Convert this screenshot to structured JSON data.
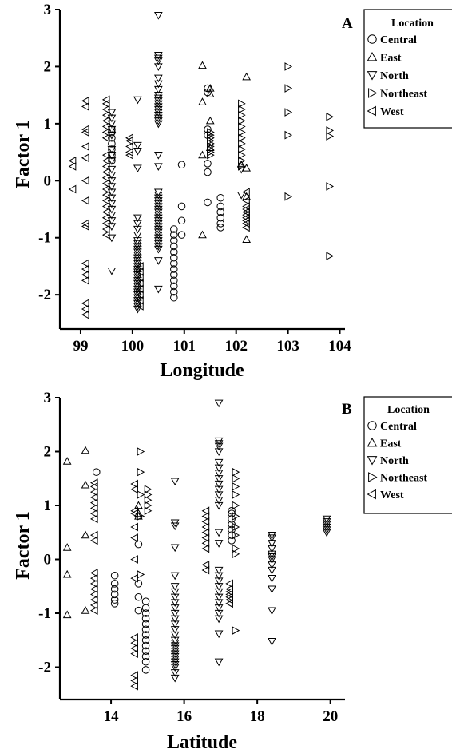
{
  "chart_data": [
    {
      "type": "scatter",
      "panel": "A",
      "xlabel": "Longitude",
      "ylabel": "Factor 1",
      "xlim": [
        98.6,
        104.1
      ],
      "ylim": [
        -2.6,
        3.0
      ],
      "xticks": [
        99,
        100,
        101,
        102,
        103,
        104
      ],
      "yticks": [
        -2,
        -1,
        0,
        1,
        2,
        3
      ],
      "legend": {
        "title": "Location",
        "placement": "right",
        "entries": [
          "Central",
          "East",
          "North",
          "Northeast",
          "West"
        ]
      },
      "series": [
        {
          "name": "Central",
          "marker": "circle",
          "clusters": [
            {
              "x": 99.6,
              "y": [
                0.35,
                0.45,
                0.55,
                0.65,
                0.75,
                0.85,
                0.9
              ]
            },
            {
              "x": 100.8,
              "y": [
                -2.05,
                -1.95,
                -1.85,
                -1.75,
                -1.65,
                -1.55,
                -1.45,
                -1.35,
                -1.25,
                -1.15,
                -1.05,
                -0.95,
                -0.85
              ]
            },
            {
              "x": 100.95,
              "y": [
                0.28,
                -0.45,
                -0.7,
                -0.95
              ]
            },
            {
              "x": 101.45,
              "y": [
                1.62,
                1.55,
                0.9,
                0.8,
                0.3,
                0.15,
                -0.38
              ]
            },
            {
              "x": 101.7,
              "y": [
                -0.3,
                -0.45,
                -0.55,
                -0.65,
                -0.75,
                -0.82
              ]
            }
          ]
        },
        {
          "name": "East",
          "marker": "triangle-up",
          "clusters": [
            {
              "x": 101.35,
              "y": [
                2.02,
                1.38,
                0.45,
                -0.95
              ]
            },
            {
              "x": 101.5,
              "y": [
                1.62,
                1.52,
                1.05,
                0.58
              ]
            },
            {
              "x": 102.1,
              "y": [
                0.28
              ]
            },
            {
              "x": 102.2,
              "y": [
                1.82,
                0.22,
                -0.28,
                -1.03
              ]
            }
          ]
        },
        {
          "name": "North",
          "marker": "triangle-down",
          "clusters": [
            {
              "x": 99.6,
              "y": [
                1.2,
                1.1,
                1.0,
                0.9,
                0.8,
                0.55,
                0.45,
                0.35,
                0.2,
                0.1,
                0.0,
                -0.1,
                -0.2,
                -0.3,
                -0.4,
                -0.5,
                -0.6,
                -0.7,
                -0.8,
                -1.0,
                -1.58
              ]
            },
            {
              "x": 100.1,
              "y": [
                1.42,
                0.62,
                0.52,
                0.22,
                -0.65,
                -0.75,
                -0.85,
                -0.95,
                -1.05,
                -1.1,
                -1.15,
                -1.2,
                -1.25,
                -1.3,
                -1.35,
                -1.4,
                -1.45,
                -1.5,
                -1.55,
                -1.6,
                -1.65,
                -1.7,
                -1.75,
                -1.8,
                -1.85,
                -1.9,
                -1.95,
                -2.0,
                -2.05,
                -2.1,
                -2.15,
                -2.2,
                -2.25
              ]
            },
            {
              "x": 100.5,
              "y": [
                2.9,
                2.2,
                2.15,
                2.1,
                2.0,
                1.8,
                1.7,
                1.6,
                1.5,
                1.45,
                1.4,
                1.35,
                1.3,
                1.25,
                1.2,
                1.15,
                1.1,
                1.05,
                1.0,
                0.45,
                0.25,
                -0.2,
                -0.25,
                -0.3,
                -0.35,
                -0.4,
                -0.45,
                -0.5,
                -0.55,
                -0.6,
                -0.65,
                -0.7,
                -0.75,
                -0.8,
                -0.85,
                -0.9,
                -0.95,
                -1.0,
                -1.05,
                -1.1,
                -1.15,
                -1.2,
                -1.4,
                -1.9
              ]
            },
            {
              "x": 102.1,
              "y": [
                0.2,
                -0.25
              ]
            }
          ]
        },
        {
          "name": "Northeast",
          "marker": "triangle-right",
          "clusters": [
            {
              "x": 101.5,
              "y": [
                0.85,
                0.8,
                0.75,
                0.7,
                0.65,
                0.6,
                0.55,
                0.5,
                0.45
              ]
            },
            {
              "x": 102.1,
              "y": [
                1.35,
                1.25,
                1.15,
                1.05,
                0.95,
                0.85,
                0.75,
                0.65,
                0.55,
                0.45,
                0.35,
                0.25
              ]
            },
            {
              "x": 103.0,
              "y": [
                2.0,
                1.62,
                1.2,
                0.8,
                -0.28
              ]
            },
            {
              "x": 103.8,
              "y": [
                1.12,
                0.88,
                0.78,
                -0.1,
                -1.32
              ]
            }
          ]
        },
        {
          "name": "West",
          "marker": "triangle-left",
          "clusters": [
            {
              "x": 98.85,
              "y": [
                0.35,
                0.25,
                -0.15
              ]
            },
            {
              "x": 99.1,
              "y": [
                1.4,
                1.3,
                0.9,
                0.85,
                0.6,
                0.4,
                0.0,
                -0.35,
                -0.75,
                -0.8,
                -1.45,
                -1.55,
                -1.65,
                -1.75,
                -2.15,
                -2.25,
                -2.35
              ]
            },
            {
              "x": 99.5,
              "y": [
                1.42,
                1.35,
                1.25,
                1.15,
                1.05,
                0.95,
                0.85,
                0.75,
                0.45,
                0.35,
                0.25,
                0.15,
                0.05,
                -0.05,
                -0.15,
                -0.25,
                -0.35,
                -0.45,
                -0.55,
                -0.65,
                -0.75,
                -0.85,
                -0.95
              ]
            },
            {
              "x": 99.95,
              "y": [
                0.75,
                0.7,
                0.6,
                0.5,
                0.45
              ]
            },
            {
              "x": 100.15,
              "y": [
                -1.5,
                -1.6,
                -1.7,
                -1.8,
                -1.9,
                -2.0,
                -2.1,
                -2.2
              ]
            },
            {
              "x": 102.2,
              "y": [
                -0.2,
                -0.35,
                -0.45,
                -0.5,
                -0.55,
                -0.6,
                -0.65,
                -0.7,
                -0.75,
                -0.82
              ]
            }
          ]
        }
      ]
    },
    {
      "type": "scatter",
      "panel": "B",
      "xlabel": "Latitude",
      "ylabel": "Factor 1",
      "xlim": [
        12.6,
        20.4
      ],
      "ylim": [
        -2.6,
        3.0
      ],
      "xticks": [
        14,
        16,
        18,
        20
      ],
      "yticks": [
        -2,
        -1,
        0,
        1,
        2,
        3
      ],
      "legend": {
        "title": "Location",
        "placement": "right",
        "entries": [
          "Central",
          "East",
          "North",
          "Northeast",
          "West"
        ]
      },
      "series": [
        {
          "name": "Central",
          "marker": "circle",
          "clusters": [
            {
              "x": 13.6,
              "y": [
                1.62
              ]
            },
            {
              "x": 14.1,
              "y": [
                -0.3,
                -0.45,
                -0.55,
                -0.65,
                -0.75,
                -0.82
              ]
            },
            {
              "x": 14.75,
              "y": [
                0.28,
                -0.45,
                -0.7,
                -0.95
              ]
            },
            {
              "x": 14.95,
              "y": [
                -0.78,
                -0.9,
                -1.0,
                -1.1,
                -1.2,
                -1.3,
                -1.4,
                -1.5,
                -1.6,
                -1.7,
                -1.8,
                -1.9,
                -2.05
              ]
            },
            {
              "x": 17.3,
              "y": [
                0.35,
                0.45,
                0.55,
                0.65,
                0.75,
                0.85,
                0.9
              ]
            }
          ]
        },
        {
          "name": "East",
          "marker": "triangle-up",
          "clusters": [
            {
              "x": 12.8,
              "y": [
                1.82,
                0.22,
                -0.28,
                -1.03
              ]
            },
            {
              "x": 13.3,
              "y": [
                2.02,
                1.38,
                0.45,
                -0.95
              ]
            },
            {
              "x": 14.75,
              "y": [
                1.0,
                0.85,
                0.8
              ]
            }
          ]
        },
        {
          "name": "North",
          "marker": "triangle-down",
          "clusters": [
            {
              "x": 15.75,
              "y": [
                1.45,
                0.68,
                0.62,
                0.22,
                -0.3,
                -0.5,
                -0.6,
                -0.7,
                -0.8,
                -0.9,
                -1.0,
                -1.1,
                -1.2,
                -1.3,
                -1.4,
                -1.5,
                -1.55,
                -1.6,
                -1.65,
                -1.7,
                -1.75,
                -1.8,
                -1.85,
                -1.9,
                -1.95,
                -2.0,
                -2.1,
                -2.2
              ]
            },
            {
              "x": 16.95,
              "y": [
                2.9,
                2.2,
                2.15,
                2.1,
                2.0,
                1.8,
                1.7,
                1.6,
                1.5,
                1.4,
                1.3,
                1.2,
                1.1,
                1.0,
                0.5,
                0.3,
                -0.2,
                -0.3,
                -0.4,
                -0.5,
                -0.6,
                -0.7,
                -0.8,
                -0.9,
                -1.0,
                -1.1,
                -1.38,
                -1.9
              ]
            },
            {
              "x": 18.4,
              "y": [
                0.45,
                0.4,
                0.3,
                0.2,
                0.1,
                0.05,
                0.0,
                -0.1,
                -0.2,
                -0.35,
                -0.55,
                -0.95,
                -1.52
              ]
            },
            {
              "x": 19.9,
              "y": [
                0.75,
                0.7,
                0.65,
                0.6,
                0.55,
                0.5
              ]
            }
          ]
        },
        {
          "name": "Northeast",
          "marker": "triangle-right",
          "clusters": [
            {
              "x": 14.8,
              "y": [
                2.0,
                1.62,
                1.2,
                0.8,
                -0.28
              ]
            },
            {
              "x": 15.0,
              "y": [
                1.3,
                1.2,
                1.1,
                1.0,
                0.9
              ]
            },
            {
              "x": 17.4,
              "y": [
                1.62,
                1.5,
                1.35,
                1.2,
                1.0,
                0.8,
                0.6,
                0.45,
                0.2,
                0.1,
                -1.32
              ]
            }
          ]
        },
        {
          "name": "West",
          "marker": "triangle-left",
          "clusters": [
            {
              "x": 13.55,
              "y": [
                1.42,
                1.35,
                1.25,
                1.15,
                1.05,
                0.95,
                0.85,
                0.75,
                0.45,
                0.35,
                -0.25,
                -0.35,
                -0.45,
                -0.55,
                -0.65,
                -0.75,
                -0.85,
                -0.95
              ]
            },
            {
              "x": 14.65,
              "y": [
                1.4,
                1.3,
                0.9,
                0.85,
                0.6,
                0.4,
                0.0,
                -0.35,
                -1.45,
                -1.55,
                -1.65,
                -1.75,
                -2.15,
                -2.25,
                -2.35
              ]
            },
            {
              "x": 16.6,
              "y": [
                0.9,
                0.8,
                0.7,
                0.6,
                0.5,
                0.4,
                0.3,
                0.2,
                -0.1,
                -0.2
              ]
            },
            {
              "x": 17.25,
              "y": [
                -0.45,
                -0.55,
                -0.6,
                -0.65,
                -0.7,
                -0.75,
                -0.82
              ]
            }
          ]
        }
      ]
    }
  ]
}
